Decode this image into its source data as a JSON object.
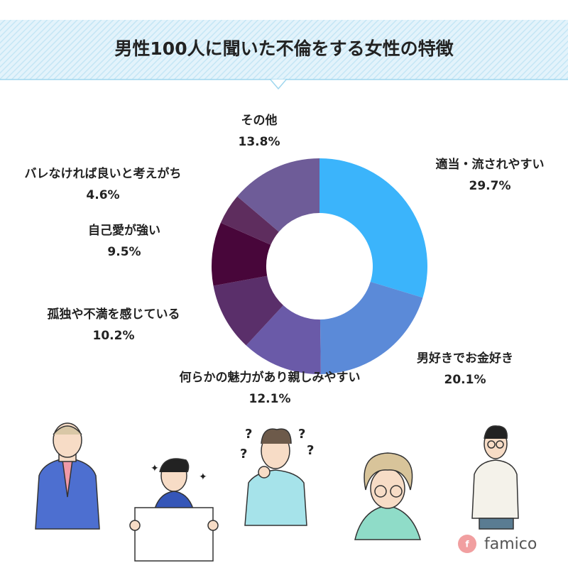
{
  "chart_data": {
    "type": "pie",
    "title": "男性100人に聞いた不倫をする女性の特徴",
    "categories": [
      "適当・流されやすい",
      "男好きでお金好き",
      "何らかの魅力があり親しみやすい",
      "孤独や不満を感じている",
      "自己愛が強い",
      "バレなければ良いと考えがち",
      "その他"
    ],
    "values": [
      29.7,
      20.1,
      12.1,
      10.2,
      9.5,
      4.6,
      13.8
    ],
    "value_labels": [
      "29.7%",
      "20.1%",
      "12.1%",
      "10.2%",
      "9.5%",
      "4.6%",
      "13.8%"
    ],
    "colors": [
      "#3bb4fb",
      "#5b8ad8",
      "#6a5aa8",
      "#5a2f6a",
      "#48063a",
      "#5e2d5e",
      "#6e5c98"
    ],
    "donut": true
  },
  "brand": "famico"
}
